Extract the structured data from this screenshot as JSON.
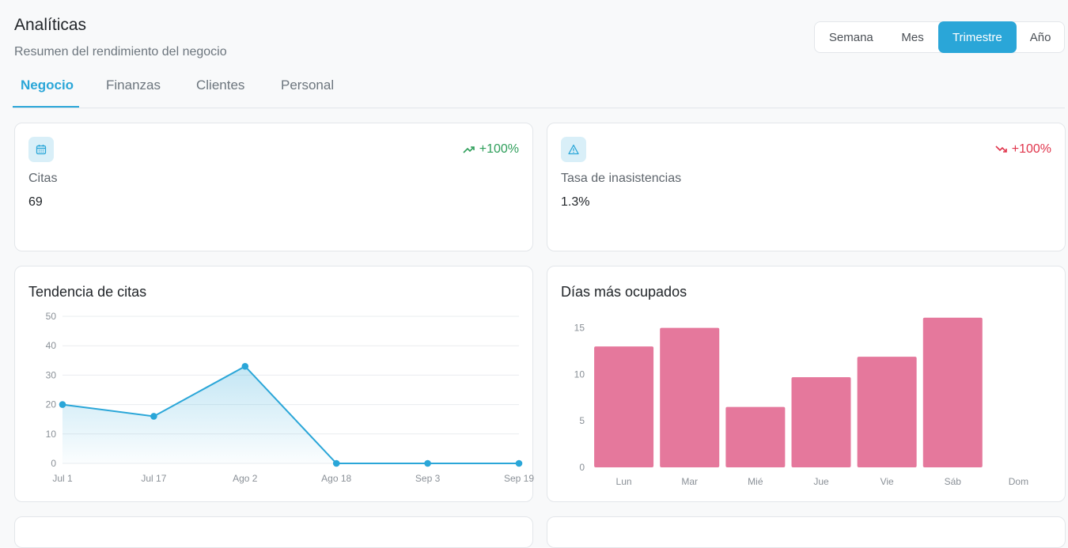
{
  "header": {
    "title": "Analíticas",
    "subtitle": "Resumen del rendimiento del negocio"
  },
  "period_toggle": {
    "options": [
      "Semana",
      "Mes",
      "Trimestre",
      "Año"
    ],
    "selected": "Trimestre"
  },
  "tabs": [
    {
      "label": "Negocio",
      "active": true
    },
    {
      "label": "Finanzas",
      "active": false
    },
    {
      "label": "Clientes",
      "active": false
    },
    {
      "label": "Personal",
      "active": false
    }
  ],
  "kpis": [
    {
      "label": "Citas",
      "value": "69",
      "trend": "+100%",
      "trend_direction": "up",
      "icon": "calendar-icon"
    },
    {
      "label": "Tasa de inasistencias",
      "value": "1.3%",
      "trend": "+100%",
      "trend_direction": "down",
      "icon": "warning-icon"
    }
  ],
  "colors": {
    "accent": "#2aa6d8",
    "trend_up": "#2e9e5a",
    "trend_down": "#e0344b",
    "bar": "#e5789c"
  },
  "chart_data": [
    {
      "type": "area",
      "title": "Tendencia de citas",
      "categories": [
        "Jul 1",
        "Jul 17",
        "Ago 2",
        "Ago 18",
        "Sep 3",
        "Sep 19"
      ],
      "values": [
        20,
        16,
        33,
        0,
        0,
        0
      ],
      "ylim": [
        0,
        50
      ],
      "yticks": [
        0,
        10,
        20,
        30,
        40,
        50
      ],
      "grid": true,
      "color": "#2aa6d8"
    },
    {
      "type": "bar",
      "title": "Días más ocupados",
      "categories": [
        "Lun",
        "Mar",
        "Mié",
        "Jue",
        "Vie",
        "Sáb",
        "Dom"
      ],
      "values": [
        13,
        15,
        6.5,
        9.7,
        11.9,
        16.1,
        0
      ],
      "ylim": [
        0,
        16.5
      ],
      "yticks": [
        0,
        5,
        10,
        15
      ],
      "grid": false,
      "color": "#e5789c"
    }
  ]
}
